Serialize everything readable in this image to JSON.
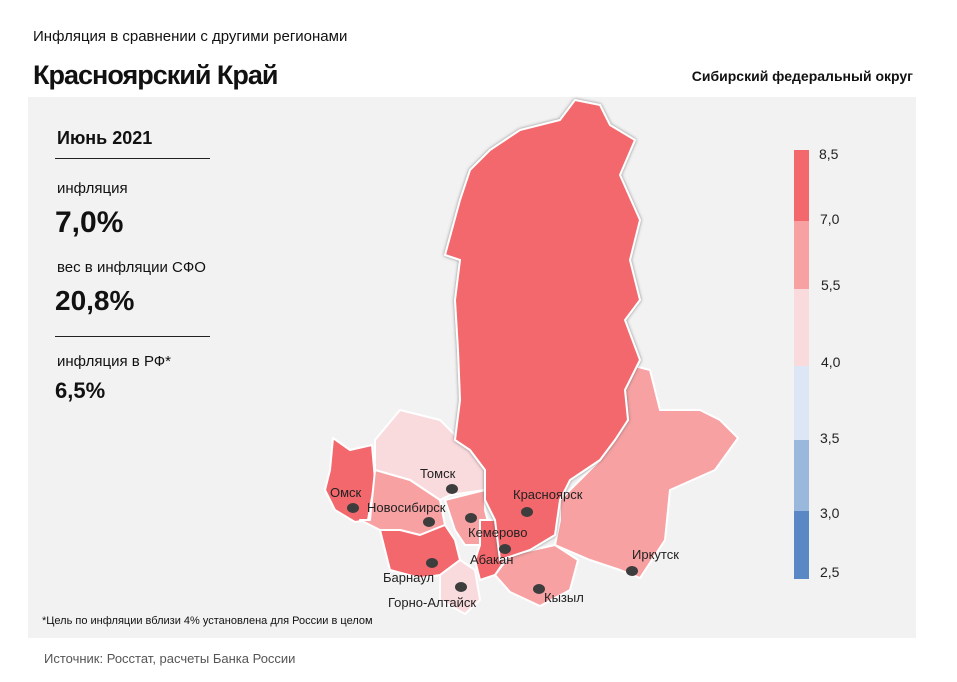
{
  "header": {
    "subtitle": "Инфляция в сравнении с другими регионами",
    "title": "Красноярский Край",
    "district": "Сибирский федеральный округ"
  },
  "stats": {
    "period": "Июнь 2021",
    "inflation_label": "инфляция",
    "inflation_value": "7,0%",
    "weight_label": "вес в инфляции СФО",
    "weight_value": "20,8%",
    "rf_label": "инфляция в РФ*",
    "rf_value": "6,5%"
  },
  "footnote": "*Цель по инфляции вблизи 4% установлена для России в целом",
  "source": "Источник: Росстат, расчеты Банка России",
  "legend": {
    "ticks": [
      "8,5",
      "7,0",
      "5,5",
      "4,0",
      "3,5",
      "3,0",
      "2,5"
    ],
    "colors": [
      "#f2686c",
      "#f7a1a3",
      "#f9dadd",
      "#dce6f4",
      "#9ab7dc",
      "#5a88c5"
    ]
  },
  "colors": {
    "high": "#f2686c",
    "mid": "#f7a1a3",
    "low": "#f9dadd"
  },
  "cities": [
    "Томск",
    "Омск",
    "Новосибирск",
    "Красноярск",
    "Кемерово",
    "Абакан",
    "Барнаул",
    "Горно-Алтайск",
    "Кызыл",
    "Иркутск"
  ]
}
